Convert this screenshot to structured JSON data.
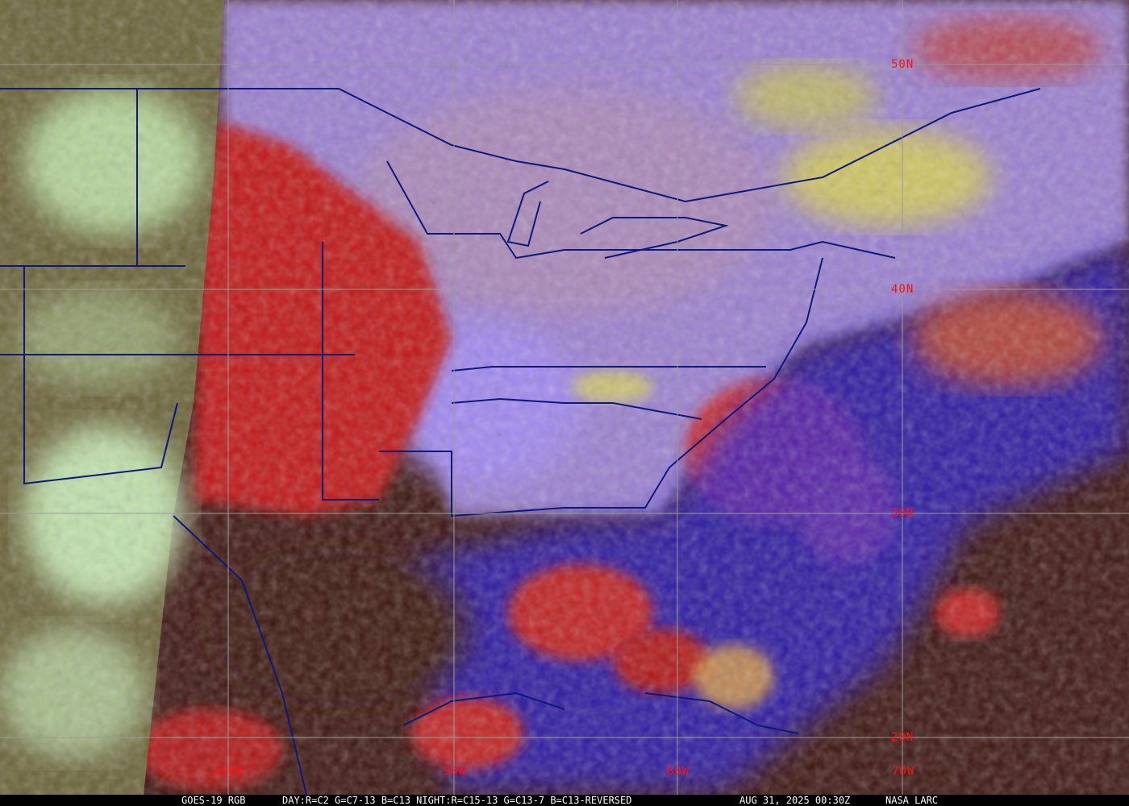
{
  "caption": {
    "satellite": "GOES-19 RGB",
    "recipe": "DAY:R=C2 G=C7-13 B=C13 NIGHT:R=C15-13 G=C13-7 B=C13-REVERSED",
    "datetime": "AUG 31, 2025 00:30Z",
    "source": "NASA LARC"
  },
  "grid": {
    "latitude_labels": [
      "50N",
      "40N",
      "30N",
      "20N"
    ],
    "longitude_labels": [
      "100W",
      "90W",
      "80W",
      "70W"
    ],
    "label_color": "#ff1010",
    "grid_color": "#9a9a9a",
    "border_color": "#0a1a7a"
  }
}
